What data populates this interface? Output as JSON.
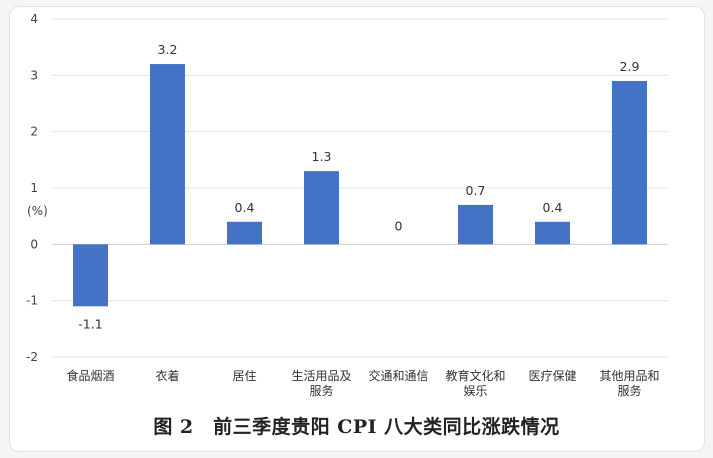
{
  "chart_data": {
    "type": "bar",
    "categories": [
      "食品烟酒",
      "衣着",
      "居住",
      "生活用品及服务",
      "交通和通信",
      "教育文化和娱乐",
      "医疗保健",
      "其他用品和服务"
    ],
    "category_lines": [
      [
        "食品烟酒"
      ],
      [
        "衣着"
      ],
      [
        "居住"
      ],
      [
        "生活用品及",
        "服务"
      ],
      [
        "交通和通信"
      ],
      [
        "教育文化和",
        "娱乐"
      ],
      [
        "医疗保健"
      ],
      [
        "其他用品和",
        "服务"
      ]
    ],
    "values": [
      -1.1,
      3.2,
      0.4,
      1.3,
      0,
      0.7,
      0.4,
      2.9
    ],
    "data_labels": [
      "-1.1",
      "3.2",
      "0.4",
      "1.3",
      "0",
      "0.7",
      "0.4",
      "2.9"
    ],
    "y_ticks": [
      4,
      3,
      2,
      1,
      0,
      -1,
      -2
    ],
    "ylim": [
      -2,
      4
    ],
    "ylabel": "(%)",
    "grid": true,
    "bar_color": "#4472c4",
    "caption": "图 2　前三季度贵阳 CPI 八大类同比涨跌情况"
  }
}
